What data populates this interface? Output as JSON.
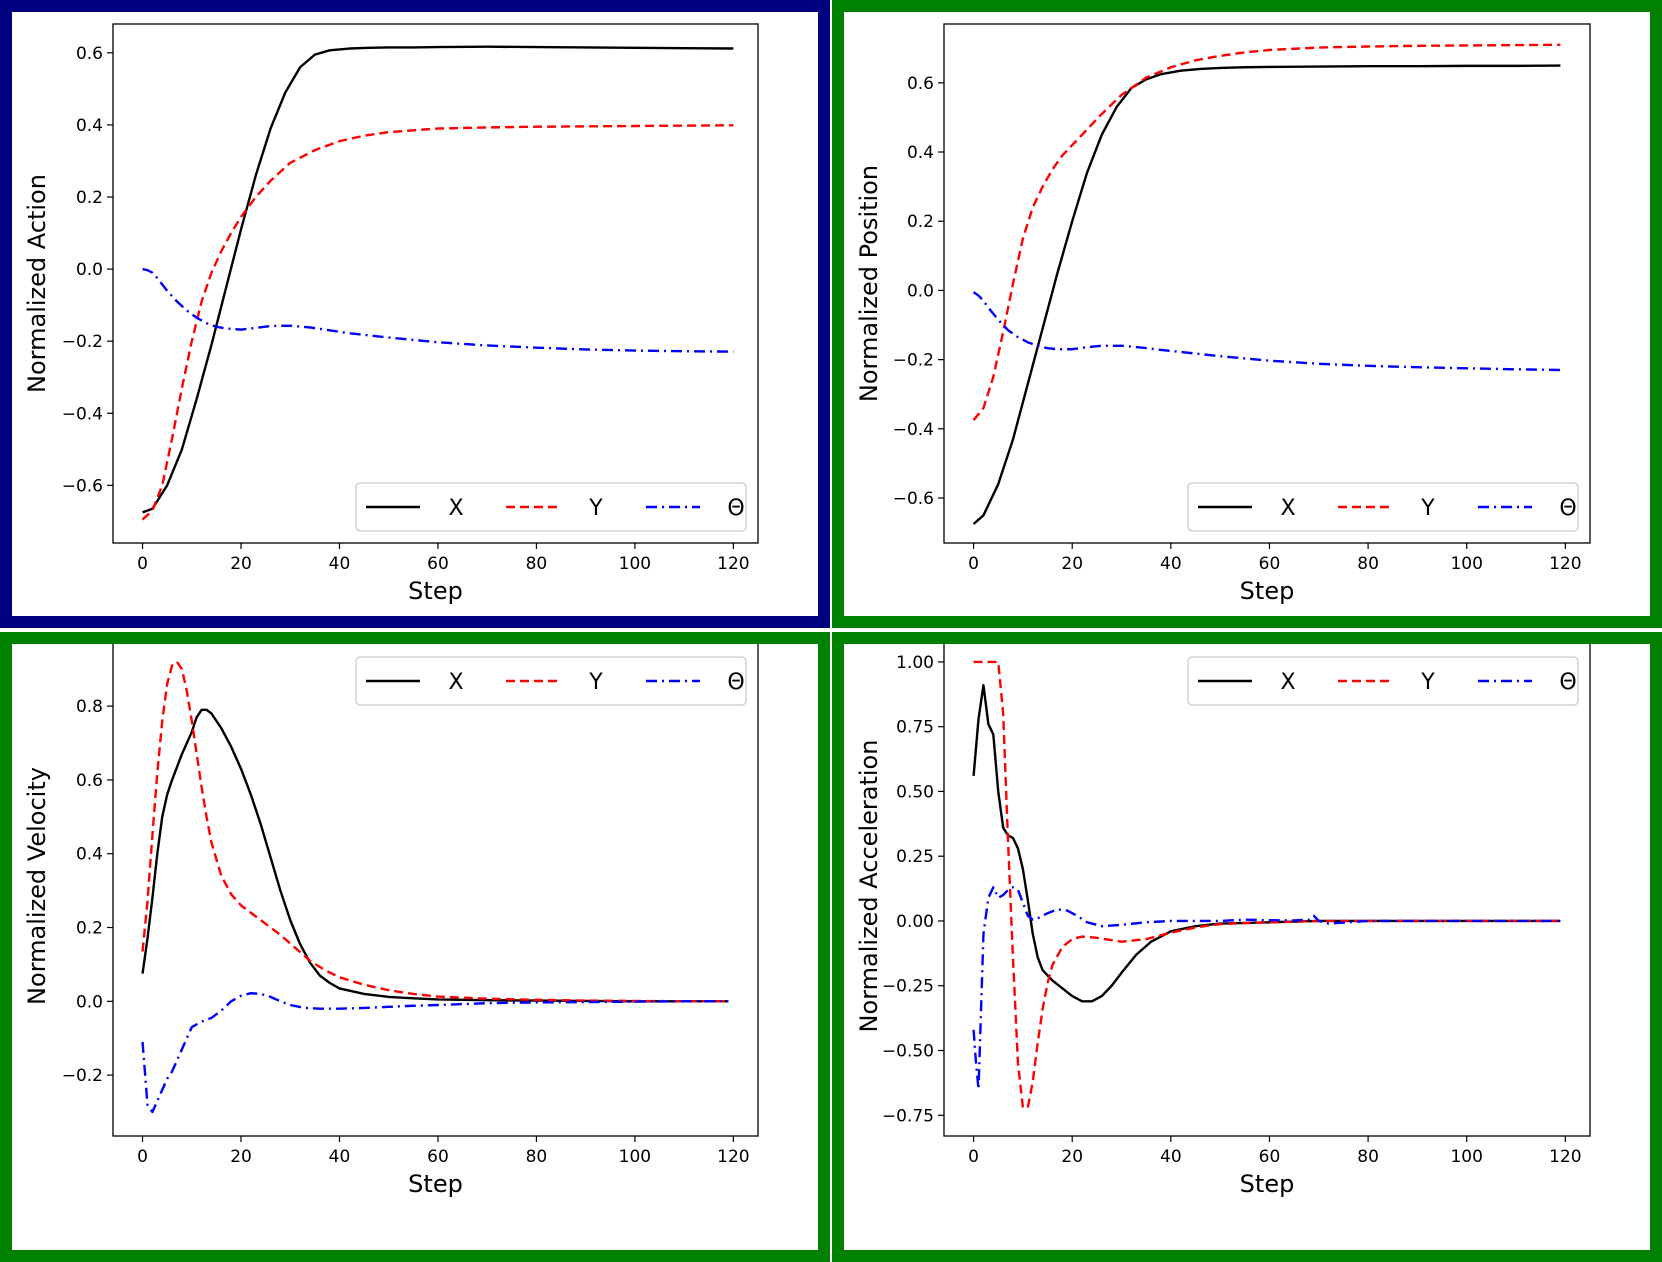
{
  "colors": {
    "frame_top_left": "#000080",
    "frame_other": "#008000",
    "series_x": "#000000",
    "series_y": "#ff0000",
    "series_theta": "#0000ff"
  },
  "chart_data": [
    {
      "type": "line",
      "panel": "top-left",
      "xlabel": "Step",
      "ylabel": "Normalized Action",
      "xlim": [
        -6,
        125
      ],
      "ylim": [
        -0.76,
        0.68
      ],
      "xticks": [
        0,
        20,
        40,
        60,
        80,
        100,
        120
      ],
      "yticks": [
        -0.6,
        -0.4,
        -0.2,
        0.0,
        0.2,
        0.4,
        0.6
      ],
      "ytick_labels": [
        "−0.6",
        "−0.4",
        "−0.2",
        "0.0",
        "0.2",
        "0.4",
        "0.6"
      ],
      "legend": {
        "placement": "lower-right",
        "entries": [
          "X",
          "Y",
          "Θ"
        ]
      },
      "series": [
        {
          "name": "X",
          "style": "solid",
          "color": "#000000",
          "x": [
            0,
            2,
            5,
            8,
            11,
            14,
            17,
            20,
            23,
            26,
            29,
            32,
            35,
            38,
            42,
            46,
            50,
            55,
            60,
            70,
            80,
            90,
            100,
            110,
            120
          ],
          "y": [
            -0.675,
            -0.665,
            -0.6,
            -0.5,
            -0.36,
            -0.21,
            -0.05,
            0.11,
            0.26,
            0.39,
            0.49,
            0.56,
            0.595,
            0.607,
            0.612,
            0.614,
            0.615,
            0.615,
            0.616,
            0.617,
            0.616,
            0.615,
            0.614,
            0.613,
            0.612
          ]
        },
        {
          "name": "Y",
          "style": "dashed",
          "color": "#ff0000",
          "x": [
            0,
            2,
            4,
            6,
            8,
            10,
            12,
            14,
            16,
            18,
            20,
            23,
            26,
            30,
            35,
            40,
            45,
            50,
            55,
            60,
            70,
            80,
            90,
            100,
            110,
            120
          ],
          "y": [
            -0.695,
            -0.67,
            -0.6,
            -0.47,
            -0.33,
            -0.2,
            -0.09,
            -0.01,
            0.05,
            0.1,
            0.145,
            0.2,
            0.245,
            0.295,
            0.33,
            0.355,
            0.37,
            0.38,
            0.385,
            0.39,
            0.393,
            0.395,
            0.396,
            0.397,
            0.398,
            0.399
          ]
        },
        {
          "name": "Θ",
          "style": "dashdot",
          "color": "#0000ff",
          "x": [
            0,
            1,
            2,
            3,
            5,
            7,
            9,
            11,
            13,
            15,
            17,
            20,
            23,
            26,
            30,
            34,
            38,
            42,
            50,
            60,
            70,
            80,
            90,
            100,
            110,
            120
          ],
          "y": [
            0.0,
            -0.003,
            -0.01,
            -0.025,
            -0.06,
            -0.09,
            -0.115,
            -0.135,
            -0.15,
            -0.16,
            -0.165,
            -0.168,
            -0.163,
            -0.158,
            -0.157,
            -0.162,
            -0.17,
            -0.178,
            -0.19,
            -0.203,
            -0.212,
            -0.218,
            -0.223,
            -0.226,
            -0.228,
            -0.229
          ]
        }
      ]
    },
    {
      "type": "line",
      "panel": "top-right",
      "xlabel": "Step",
      "ylabel": "Normalized Position",
      "xlim": [
        -6,
        125
      ],
      "ylim": [
        -0.73,
        0.77
      ],
      "xticks": [
        0,
        20,
        40,
        60,
        80,
        100,
        120
      ],
      "yticks": [
        -0.6,
        -0.4,
        -0.2,
        0.0,
        0.2,
        0.4,
        0.6
      ],
      "ytick_labels": [
        "−0.6",
        "−0.4",
        "−0.2",
        "0.0",
        "0.2",
        "0.4",
        "0.6"
      ],
      "legend": {
        "placement": "lower-right",
        "entries": [
          "X",
          "Y",
          "Θ"
        ]
      },
      "series": [
        {
          "name": "X",
          "style": "solid",
          "color": "#000000",
          "x": [
            0,
            2,
            5,
            8,
            11,
            14,
            17,
            20,
            23,
            26,
            29,
            32,
            35,
            38,
            42,
            46,
            50,
            55,
            60,
            70,
            80,
            90,
            100,
            110,
            119
          ],
          "y": [
            -0.675,
            -0.65,
            -0.56,
            -0.43,
            -0.27,
            -0.11,
            0.05,
            0.2,
            0.34,
            0.45,
            0.53,
            0.585,
            0.61,
            0.625,
            0.635,
            0.64,
            0.643,
            0.645,
            0.646,
            0.647,
            0.648,
            0.648,
            0.649,
            0.649,
            0.65
          ]
        },
        {
          "name": "Y",
          "style": "dashed",
          "color": "#ff0000",
          "x": [
            0,
            2,
            4,
            6,
            8,
            10,
            12,
            14,
            16,
            18,
            20,
            23,
            26,
            30,
            35,
            40,
            45,
            50,
            55,
            60,
            70,
            80,
            90,
            100,
            110,
            119
          ],
          "y": [
            -0.375,
            -0.34,
            -0.25,
            -0.12,
            0.02,
            0.15,
            0.24,
            0.3,
            0.35,
            0.39,
            0.42,
            0.465,
            0.51,
            0.565,
            0.615,
            0.645,
            0.665,
            0.678,
            0.688,
            0.695,
            0.702,
            0.705,
            0.707,
            0.708,
            0.709,
            0.71
          ]
        },
        {
          "name": "Θ",
          "style": "dashdot",
          "color": "#0000ff",
          "x": [
            0,
            1,
            2,
            3,
            5,
            7,
            9,
            11,
            13,
            15,
            17,
            20,
            23,
            26,
            30,
            34,
            38,
            42,
            50,
            60,
            70,
            80,
            90,
            100,
            110,
            119
          ],
          "y": [
            -0.005,
            -0.015,
            -0.03,
            -0.05,
            -0.085,
            -0.115,
            -0.135,
            -0.15,
            -0.16,
            -0.167,
            -0.17,
            -0.17,
            -0.164,
            -0.16,
            -0.16,
            -0.165,
            -0.172,
            -0.178,
            -0.19,
            -0.203,
            -0.212,
            -0.218,
            -0.222,
            -0.225,
            -0.228,
            -0.23
          ]
        }
      ]
    },
    {
      "type": "line",
      "panel": "bottom-left",
      "xlabel": "Step",
      "ylabel": "Normalized Velocity",
      "xlim": [
        -6,
        125
      ],
      "ylim": [
        -0.365,
        0.99
      ],
      "xticks": [
        0,
        20,
        40,
        60,
        80,
        100,
        120
      ],
      "yticks": [
        -0.2,
        0.0,
        0.2,
        0.4,
        0.6,
        0.8
      ],
      "ytick_labels": [
        "−0.2",
        "0.0",
        "0.2",
        "0.4",
        "0.6",
        "0.8"
      ],
      "legend": {
        "placement": "top-right",
        "entries": [
          "X",
          "Y",
          "Θ"
        ]
      },
      "series": [
        {
          "name": "X",
          "style": "solid",
          "color": "#000000",
          "x": [
            0,
            1,
            2,
            3,
            4,
            5,
            6,
            8,
            10,
            11,
            12,
            13,
            14,
            16,
            18,
            20,
            22,
            24,
            26,
            28,
            30,
            32,
            34,
            36,
            38,
            40,
            45,
            50,
            55,
            60,
            70,
            80,
            90,
            100,
            110,
            119
          ],
          "y": [
            0.075,
            0.17,
            0.28,
            0.4,
            0.5,
            0.56,
            0.6,
            0.67,
            0.73,
            0.77,
            0.79,
            0.79,
            0.78,
            0.74,
            0.69,
            0.63,
            0.56,
            0.48,
            0.39,
            0.3,
            0.22,
            0.155,
            0.105,
            0.07,
            0.05,
            0.035,
            0.02,
            0.012,
            0.008,
            0.005,
            0.003,
            0.002,
            0.001,
            0.0,
            0.0,
            0.0
          ]
        },
        {
          "name": "Y",
          "style": "dashed",
          "color": "#ff0000",
          "x": [
            0,
            1,
            2,
            3,
            4,
            5,
            6,
            7,
            8,
            9,
            10,
            11,
            12,
            13,
            14,
            16,
            18,
            20,
            22,
            25,
            28,
            31,
            34,
            37,
            40,
            45,
            50,
            55,
            60,
            70,
            80,
            90,
            100,
            110,
            119
          ],
          "y": [
            0.135,
            0.27,
            0.45,
            0.62,
            0.76,
            0.86,
            0.91,
            0.92,
            0.9,
            0.84,
            0.76,
            0.67,
            0.58,
            0.5,
            0.43,
            0.34,
            0.29,
            0.26,
            0.24,
            0.21,
            0.18,
            0.145,
            0.11,
            0.085,
            0.065,
            0.045,
            0.03,
            0.02,
            0.013,
            0.007,
            0.004,
            0.002,
            0.001,
            0.0,
            0.0
          ]
        },
        {
          "name": "Θ",
          "style": "dashdot",
          "color": "#0000ff",
          "x": [
            0,
            1,
            2,
            3,
            4,
            5,
            6,
            7,
            8,
            10,
            12,
            14,
            16,
            18,
            20,
            22,
            24,
            26,
            28,
            30,
            33,
            36,
            40,
            45,
            50,
            55,
            60,
            70,
            80,
            90,
            100,
            110,
            119
          ],
          "y": [
            -0.11,
            -0.28,
            -0.3,
            -0.27,
            -0.24,
            -0.21,
            -0.19,
            -0.16,
            -0.13,
            -0.07,
            -0.055,
            -0.045,
            -0.025,
            0.0,
            0.015,
            0.022,
            0.02,
            0.012,
            0.0,
            -0.01,
            -0.018,
            -0.02,
            -0.02,
            -0.018,
            -0.015,
            -0.012,
            -0.01,
            -0.005,
            -0.003,
            -0.002,
            -0.001,
            0.0,
            0.0
          ]
        }
      ]
    },
    {
      "type": "line",
      "panel": "bottom-right",
      "xlabel": "Step",
      "ylabel": "Normalized Acceleration",
      "xlim": [
        -6,
        125
      ],
      "ylim": [
        -0.83,
        1.1
      ],
      "xticks": [
        0,
        20,
        40,
        60,
        80,
        100,
        120
      ],
      "yticks": [
        -0.75,
        -0.5,
        -0.25,
        0.0,
        0.25,
        0.5,
        0.75,
        1.0
      ],
      "ytick_labels": [
        "−0.75",
        "−0.50",
        "−0.25",
        "0.00",
        "0.25",
        "0.50",
        "0.75",
        "1.00"
      ],
      "legend": {
        "placement": "top-right",
        "entries": [
          "X",
          "Y",
          "Θ"
        ]
      },
      "series": [
        {
          "name": "X",
          "style": "solid",
          "color": "#000000",
          "x": [
            0,
            1,
            2,
            3,
            4,
            5,
            6,
            7,
            8,
            9,
            10,
            11,
            12,
            13,
            14,
            16,
            18,
            20,
            22,
            24,
            26,
            28,
            30,
            33,
            36,
            40,
            45,
            50,
            60,
            70,
            80,
            90,
            100,
            110,
            119
          ],
          "y": [
            0.56,
            0.78,
            0.91,
            0.76,
            0.72,
            0.5,
            0.36,
            0.33,
            0.32,
            0.28,
            0.2,
            0.08,
            -0.05,
            -0.14,
            -0.19,
            -0.23,
            -0.26,
            -0.29,
            -0.31,
            -0.31,
            -0.29,
            -0.25,
            -0.2,
            -0.13,
            -0.08,
            -0.04,
            -0.02,
            -0.01,
            -0.005,
            0.0,
            0.0,
            0.0,
            0.0,
            0.0,
            0.0
          ]
        },
        {
          "name": "Y",
          "style": "dashed",
          "color": "#ff0000",
          "x": [
            0,
            1,
            2,
            3,
            4,
            5,
            6,
            7,
            8,
            9,
            10,
            11,
            12,
            13,
            14,
            15,
            16,
            18,
            20,
            22,
            25,
            30,
            35,
            40,
            45,
            50,
            60,
            70,
            80,
            90,
            100,
            110,
            119
          ],
          "y": [
            1.0,
            1.0,
            1.0,
            1.0,
            1.0,
            1.0,
            0.8,
            0.3,
            -0.15,
            -0.55,
            -0.72,
            -0.72,
            -0.62,
            -0.47,
            -0.34,
            -0.24,
            -0.17,
            -0.1,
            -0.07,
            -0.06,
            -0.065,
            -0.08,
            -0.07,
            -0.045,
            -0.025,
            -0.012,
            -0.005,
            0.0,
            0.0,
            0.0,
            0.0,
            0.0,
            0.0
          ]
        },
        {
          "name": "Θ",
          "style": "dashdot",
          "color": "#0000ff",
          "x": [
            0,
            0.5,
            1,
            1.5,
            2,
            3,
            4,
            5,
            6,
            7,
            8,
            9,
            10,
            11,
            12,
            13,
            15,
            17,
            19,
            21,
            23,
            26,
            30,
            35,
            40,
            50,
            55,
            60,
            65,
            68,
            69,
            70,
            72,
            80,
            90,
            100,
            110,
            119
          ],
          "y": [
            -0.42,
            -0.55,
            -0.65,
            -0.35,
            -0.05,
            0.09,
            0.13,
            0.09,
            0.1,
            0.12,
            0.13,
            0.12,
            0.07,
            0.02,
            0.005,
            0.01,
            0.03,
            0.045,
            0.04,
            0.02,
            -0.005,
            -0.02,
            -0.015,
            -0.005,
            0.0,
            0.0,
            0.005,
            0.003,
            0.002,
            0.005,
            0.02,
            0.0,
            -0.01,
            0.0,
            0.0,
            0.0,
            0.0,
            0.0
          ]
        }
      ]
    }
  ]
}
